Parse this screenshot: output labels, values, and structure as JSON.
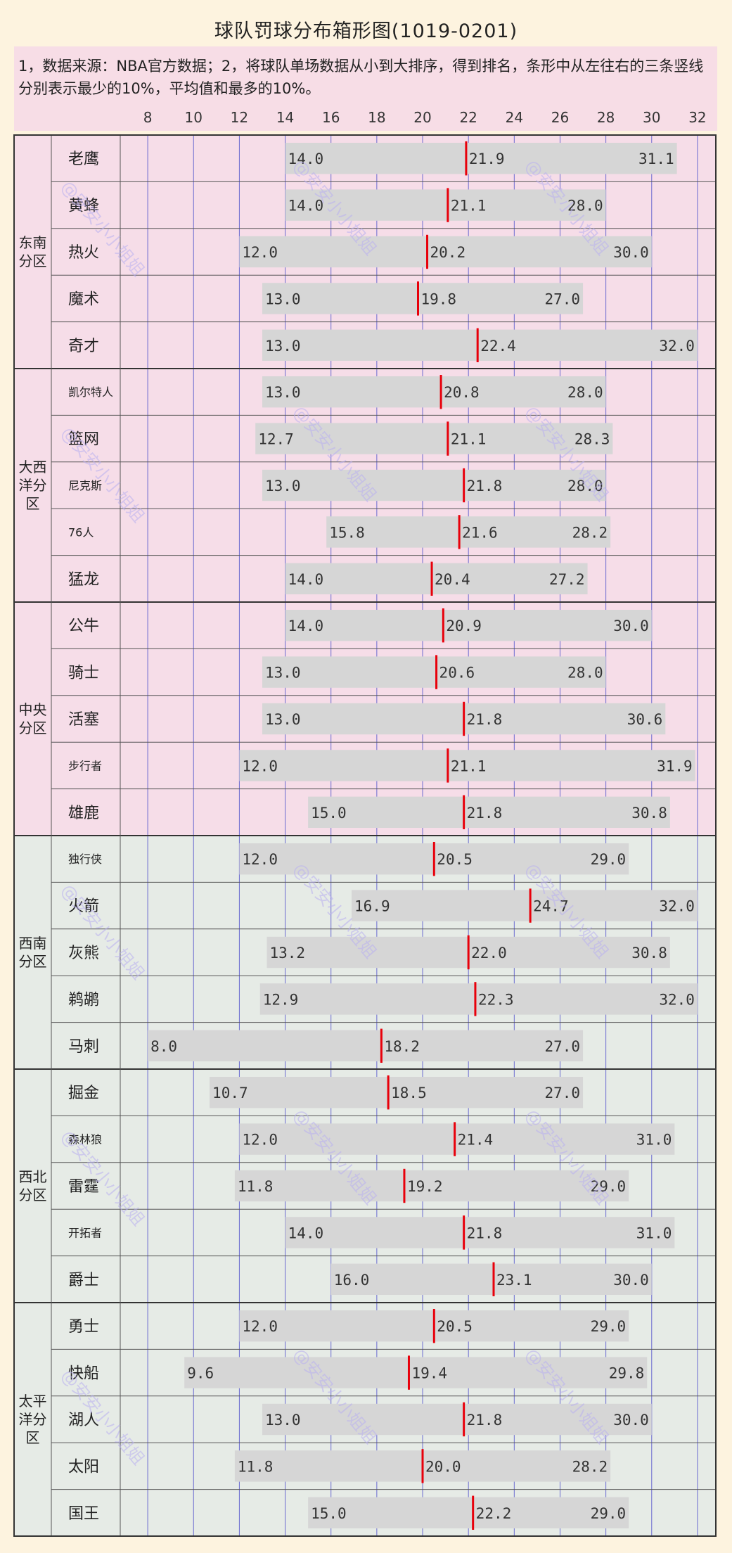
{
  "title": "球队罚球分布箱形图(1019-0201)",
  "note": "1，数据来源：NBA官方数据；2，将球队单场数据从小到大排序，得到排名，条形中从左往右的三条竖线分别表示最少的10%，平均值和最多的10%。",
  "watermark": "@安安小小姐姐",
  "colors": {
    "bar": "#d6d6d6",
    "mean_line": "#e8000b",
    "grid": "#6a6ad0",
    "east_bg": "#f6dde8",
    "west_bg": "#e6ebe6",
    "border": "#555555"
  },
  "chart_data": {
    "type": "bar",
    "orientation": "horizontal",
    "x_ticks": [
      8,
      10,
      12,
      14,
      16,
      18,
      20,
      22,
      24,
      26,
      28,
      30,
      32
    ],
    "xlim": [
      6.8,
      32.8
    ],
    "grid": true,
    "divisions": [
      {
        "name": "东南分区",
        "conference": "east",
        "teams": [
          {
            "team": "老鹰",
            "low10": 14.0,
            "mean": 21.9,
            "high10": 31.1
          },
          {
            "team": "黄蜂",
            "low10": 14.0,
            "mean": 21.1,
            "high10": 28.0
          },
          {
            "team": "热火",
            "low10": 12.0,
            "mean": 20.2,
            "high10": 30.0
          },
          {
            "team": "魔术",
            "low10": 13.0,
            "mean": 19.8,
            "high10": 27.0
          },
          {
            "team": "奇才",
            "low10": 13.0,
            "mean": 22.4,
            "high10": 32.0
          }
        ]
      },
      {
        "name": "大西洋分区",
        "conference": "east",
        "teams": [
          {
            "team": "凯尔特人",
            "low10": 13.0,
            "mean": 20.8,
            "high10": 28.0
          },
          {
            "team": "篮网",
            "low10": 12.7,
            "mean": 21.1,
            "high10": 28.3
          },
          {
            "team": "尼克斯",
            "low10": 13.0,
            "mean": 21.8,
            "high10": 28.0
          },
          {
            "team": "76人",
            "low10": 15.8,
            "mean": 21.6,
            "high10": 28.2
          },
          {
            "team": "猛龙",
            "low10": 14.0,
            "mean": 20.4,
            "high10": 27.2
          }
        ]
      },
      {
        "name": "中央分区",
        "conference": "east",
        "teams": [
          {
            "team": "公牛",
            "low10": 14.0,
            "mean": 20.9,
            "high10": 30.0
          },
          {
            "team": "骑士",
            "low10": 13.0,
            "mean": 20.6,
            "high10": 28.0
          },
          {
            "team": "活塞",
            "low10": 13.0,
            "mean": 21.8,
            "high10": 30.6
          },
          {
            "team": "步行者",
            "low10": 12.0,
            "mean": 21.1,
            "high10": 31.9
          },
          {
            "team": "雄鹿",
            "low10": 15.0,
            "mean": 21.8,
            "high10": 30.8
          }
        ]
      },
      {
        "name": "西南分区",
        "conference": "west",
        "teams": [
          {
            "team": "独行侠",
            "low10": 12.0,
            "mean": 20.5,
            "high10": 29.0
          },
          {
            "team": "火箭",
            "low10": 16.9,
            "mean": 24.7,
            "high10": 32.0
          },
          {
            "team": "灰熊",
            "low10": 13.2,
            "mean": 22.0,
            "high10": 30.8
          },
          {
            "team": "鹈鹕",
            "low10": 12.9,
            "mean": 22.3,
            "high10": 32.0
          },
          {
            "team": "马刺",
            "low10": 8.0,
            "mean": 18.2,
            "high10": 27.0
          }
        ]
      },
      {
        "name": "西北分区",
        "conference": "west",
        "teams": [
          {
            "team": "掘金",
            "low10": 10.7,
            "mean": 18.5,
            "high10": 27.0
          },
          {
            "team": "森林狼",
            "low10": 12.0,
            "mean": 21.4,
            "high10": 31.0
          },
          {
            "team": "雷霆",
            "low10": 11.8,
            "mean": 19.2,
            "high10": 29.0
          },
          {
            "team": "开拓者",
            "low10": 14.0,
            "mean": 21.8,
            "high10": 31.0
          },
          {
            "team": "爵士",
            "low10": 16.0,
            "mean": 23.1,
            "high10": 30.0
          }
        ]
      },
      {
        "name": "太平洋分区",
        "conference": "west",
        "teams": [
          {
            "team": "勇士",
            "low10": 12.0,
            "mean": 20.5,
            "high10": 29.0
          },
          {
            "team": "快船",
            "low10": 9.6,
            "mean": 19.4,
            "high10": 29.8
          },
          {
            "team": "湖人",
            "low10": 13.0,
            "mean": 21.8,
            "high10": 30.0
          },
          {
            "team": "太阳",
            "low10": 11.8,
            "mean": 20.0,
            "high10": 28.2
          },
          {
            "team": "国王",
            "low10": 15.0,
            "mean": 22.2,
            "high10": 29.0
          }
        ]
      }
    ]
  }
}
